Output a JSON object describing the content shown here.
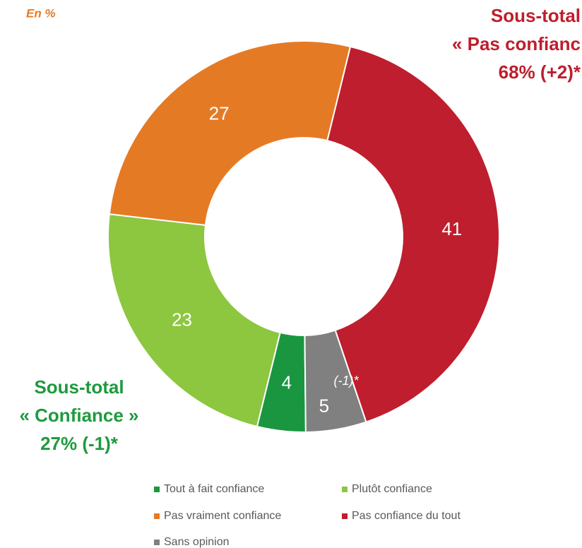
{
  "chart_data": {
    "type": "donut",
    "unit_note": "En %",
    "categories": [
      "Tout à fait confiance",
      "Plutôt confiance",
      "Pas vraiment confiance",
      "Pas confiance du tout",
      "Sans opinion"
    ],
    "values": [
      4,
      23,
      27,
      41,
      5
    ],
    "colors": [
      "#1a9641",
      "#8dc63f",
      "#e57a25",
      "#be1e2d",
      "#808080"
    ],
    "annotations": [
      {
        "text": "(-1)*"
      },
      {
        "lines": [
          "Sous-total",
          "« Confiance »",
          "27% (-1)*"
        ],
        "color": "#1e9a3e"
      },
      {
        "lines": [
          "Sous-total",
          "« Pas confianc",
          "68% (+2)*"
        ],
        "color": "#be1e2d"
      }
    ],
    "legend": true
  }
}
